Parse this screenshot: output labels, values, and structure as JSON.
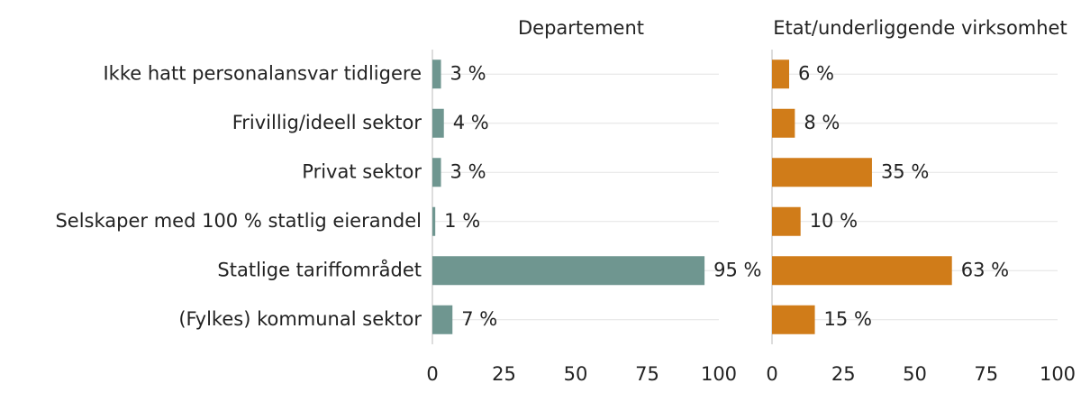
{
  "chart_data": [
    {
      "type": "bar",
      "orientation": "horizontal",
      "title": "Departement",
      "categories": [
        "Ikke hatt personalansvar tidligere",
        "Frivillig/ideell sektor",
        "Privat sektor",
        "Selskaper med 100 % statlig eierandel",
        "Statlige tariffområdet",
        "(Fylkes) kommunal sektor"
      ],
      "values": [
        3,
        4,
        3,
        1,
        95,
        7
      ],
      "value_labels": [
        "3 %",
        "4 %",
        "3 %",
        "1 %",
        "95 %",
        "7 %"
      ],
      "color": "#6f9690",
      "xlim": [
        0,
        100
      ],
      "xticks": [
        0,
        25,
        50,
        75,
        100
      ]
    },
    {
      "type": "bar",
      "orientation": "horizontal",
      "title": "Etat/underliggende virksomhet",
      "values": [
        6,
        8,
        35,
        10,
        63,
        15
      ],
      "value_labels": [
        "6 %",
        "8 %",
        "35 %",
        "10 %",
        "63 %",
        "15 %"
      ],
      "color": "#d07c19",
      "xlim": [
        0,
        100
      ],
      "xticks": [
        0,
        25,
        50,
        75,
        100
      ]
    }
  ]
}
